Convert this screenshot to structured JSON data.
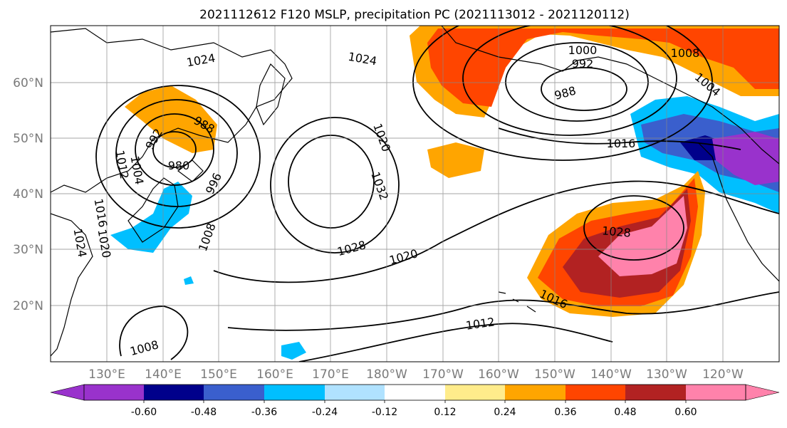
{
  "title": "2021112612 F120 MSLP, precipitation PC (2021113012 - 2021120112)",
  "map": {
    "lat_ticks": [
      {
        "value": 60,
        "label": "60°N"
      },
      {
        "value": 50,
        "label": "50°N"
      },
      {
        "value": 40,
        "label": "40°N"
      },
      {
        "value": 30,
        "label": "30°N"
      },
      {
        "value": 20,
        "label": "20°N"
      }
    ],
    "lon_ticks": [
      {
        "value": 130,
        "label": "130°E"
      },
      {
        "value": 140,
        "label": "140°E"
      },
      {
        "value": 150,
        "label": "150°E"
      },
      {
        "value": 160,
        "label": "160°E"
      },
      {
        "value": 170,
        "label": "170°E"
      },
      {
        "value": 180,
        "label": "180°W"
      },
      {
        "value": 190,
        "label": "170°W"
      },
      {
        "value": 200,
        "label": "160°W"
      },
      {
        "value": 210,
        "label": "150°W"
      },
      {
        "value": 220,
        "label": "140°W"
      },
      {
        "value": 230,
        "label": "130°W"
      },
      {
        "value": 240,
        "label": "120°W"
      }
    ],
    "lon_range": [
      120,
      250
    ],
    "lat_range": [
      10,
      70
    ],
    "grid": true,
    "isobar_labels": [
      "1024",
      "1024",
      "1000",
      "992",
      "988",
      "1008",
      "1004",
      "988",
      "992",
      "980",
      "1016",
      "1020",
      "1032",
      "1028",
      "1020",
      "1028",
      "1012",
      "1016",
      "1008",
      "996",
      "1008",
      "1016",
      "1020",
      "1024",
      "1004",
      "1012"
    ]
  },
  "colorbar": {
    "colors": [
      "#9932cc",
      "#00008b",
      "#3a5fcd",
      "#00bfff",
      "#b0e2ff",
      "#ffffff",
      "#ffec8b",
      "#ffa500",
      "#ff4500",
      "#b22222",
      "#ff82ab"
    ],
    "tick_labels": [
      "-0.60",
      "-0.48",
      "-0.36",
      "-0.24",
      "-0.12",
      "0.12",
      "0.24",
      "0.36",
      "0.48",
      "0.60"
    ]
  }
}
